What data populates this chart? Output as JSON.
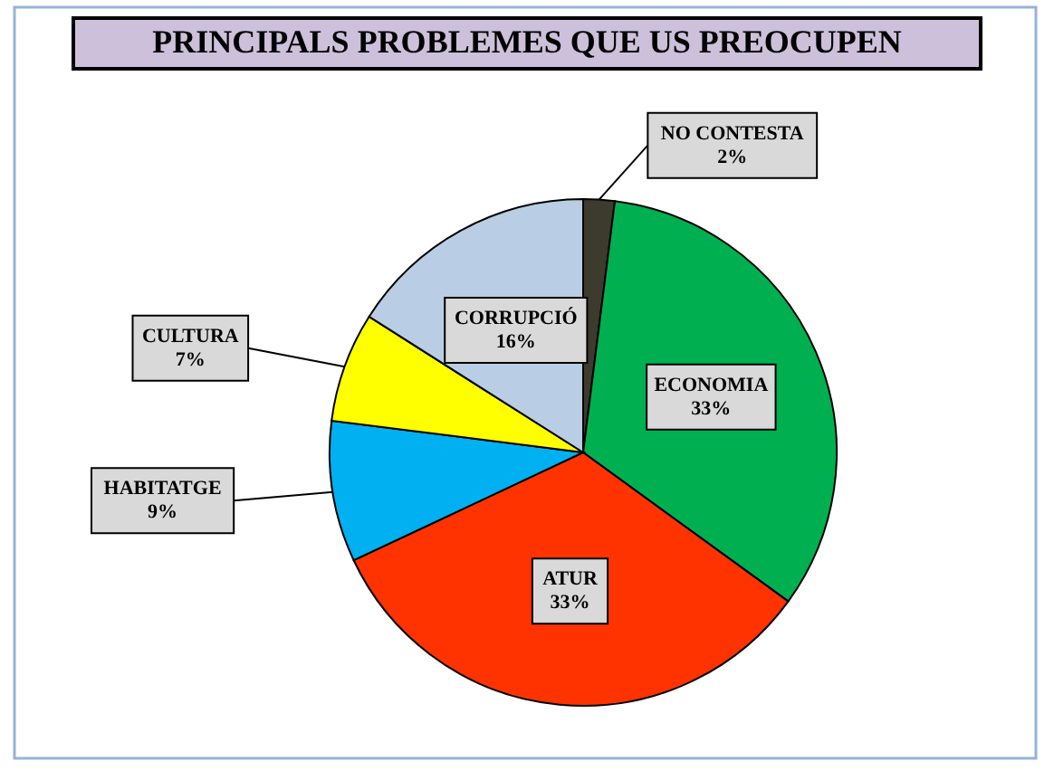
{
  "chart_data": {
    "type": "pie",
    "title": "PRINCIPALS PROBLEMES QUE US PREOCUPEN",
    "categories": [
      "NO CONTESTA",
      "ECONOMIA",
      "ATUR",
      "HABITATGE",
      "CULTURA",
      "CORRUPCIÓ"
    ],
    "values": [
      2,
      33,
      33,
      9,
      7,
      16
    ],
    "colors": [
      "#3d3a2e",
      "#00b050",
      "#ff3300",
      "#00b0f0",
      "#ffff00",
      "#b9cde5"
    ],
    "value_labels": [
      "2%",
      "33%",
      "33%",
      "9%",
      "7%",
      "16%"
    ]
  }
}
